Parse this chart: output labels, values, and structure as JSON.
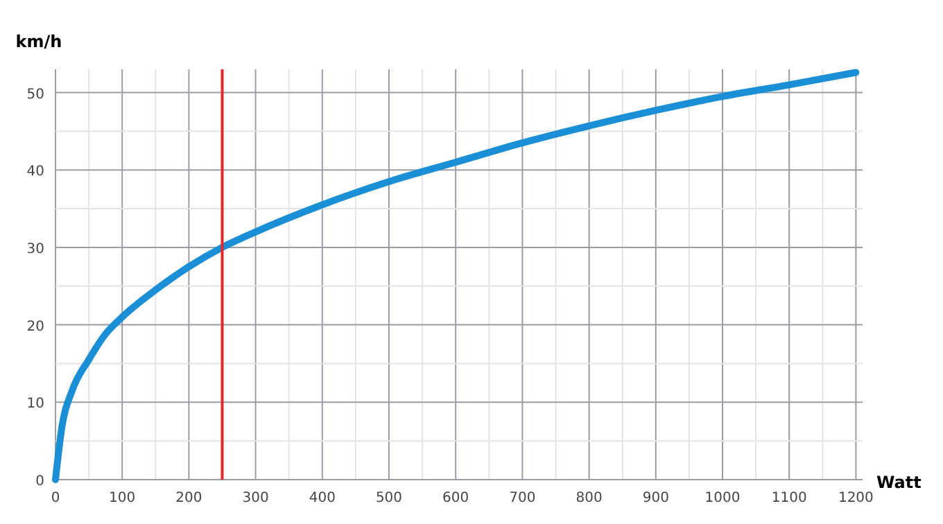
{
  "chart_data": {
    "type": "line",
    "xlabel": "Watt",
    "ylabel": "km/h",
    "x": [
      0,
      10,
      25,
      50,
      75,
      100,
      150,
      200,
      250,
      300,
      400,
      500,
      600,
      700,
      800,
      900,
      1000,
      1100,
      1200
    ],
    "series": [
      {
        "color": "#1a8fd6",
        "values": [
          0,
          7,
          11.5,
          15.5,
          18.8,
          21,
          24.5,
          27.5,
          30,
          32,
          35.5,
          38.5,
          41,
          43.5,
          45.7,
          47.7,
          49.5,
          51,
          52.6
        ]
      }
    ],
    "xlim": [
      0,
      1210
    ],
    "ylim": [
      0,
      53
    ],
    "xticks": [
      0,
      {
        "value": 50,
        "label": null
      },
      100,
      {
        "value": 150,
        "label": null
      },
      200,
      {
        "value": 250,
        "label": null
      },
      300,
      {
        "value": 350,
        "label": null
      },
      400,
      {
        "value": 450,
        "label": null
      },
      500,
      {
        "value": 550,
        "label": null
      },
      600,
      {
        "value": 650,
        "label": null
      },
      700,
      {
        "value": 750,
        "label": null
      },
      800,
      {
        "value": 850,
        "label": null
      },
      900,
      {
        "value": 950,
        "label": null
      },
      1000,
      {
        "value": 1050,
        "label": null
      },
      1100,
      {
        "value": 1150,
        "label": null
      },
      1200
    ],
    "yticks": [
      0,
      {
        "value": 5,
        "label": null
      },
      10,
      {
        "value": 15,
        "label": null
      },
      20,
      {
        "value": 25,
        "label": null
      },
      30,
      {
        "value": 35,
        "label": null
      },
      40,
      {
        "value": 45,
        "label": null
      },
      50
    ],
    "ref_lines": [
      {
        "axis": "x",
        "value": 250,
        "color": "#e8262a"
      }
    ],
    "grid": true,
    "marker": "none",
    "line_style": "solid"
  }
}
